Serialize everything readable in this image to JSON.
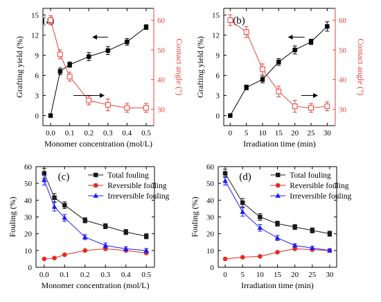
{
  "chart_data": [
    {
      "panel": "(a)",
      "type": "line",
      "xlabel": "Monomer concentration (mol/L)",
      "ylabel": "Grafting yield (%)",
      "y2label": "Contact angle (°)",
      "xlim": [
        -0.04,
        0.54
      ],
      "ylim": [
        -1.5,
        16
      ],
      "y2lim": [
        24.5,
        64
      ],
      "xticks": [
        "0.0",
        "0.1",
        "0.2",
        "0.3",
        "0.4",
        "0.5"
      ],
      "xtick_values": [
        0,
        0.1,
        0.2,
        0.3,
        0.4,
        0.5
      ],
      "yticks": [
        "0",
        "3",
        "6",
        "9",
        "12",
        "15"
      ],
      "ytick_values": [
        0,
        3,
        6,
        9,
        12,
        15
      ],
      "y2ticks": [
        "30",
        "40",
        "50",
        "60"
      ],
      "y2tick_values": [
        30,
        40,
        50,
        60
      ],
      "series": [
        {
          "axis": "left",
          "color": "#000000",
          "marker": "square",
          "x": [
            0,
            0.05,
            0.1,
            0.2,
            0.3,
            0.4,
            0.5
          ],
          "values": [
            0,
            6.6,
            7.6,
            8.8,
            9.7,
            11.0,
            13.2
          ],
          "errors": [
            0,
            0.5,
            0.4,
            0.6,
            0.6,
            0.5,
            0.35
          ]
        },
        {
          "axis": "right",
          "color": "#e8403a",
          "marker": "open-square",
          "x": [
            0,
            0.05,
            0.1,
            0.2,
            0.3,
            0.4,
            0.5
          ],
          "values": [
            60,
            48.5,
            41,
            33,
            31.5,
            30.5,
            30.5
          ],
          "errors": [
            1.5,
            1.5,
            1.5,
            1.5,
            2,
            1.5,
            1.5
          ]
        }
      ],
      "arrows": [
        {
          "direction": "left",
          "x": [
            0.3,
            0.22
          ],
          "y": 11.7
        },
        {
          "direction": "right",
          "x": [
            0.12,
            0.28
          ],
          "y": 3.0
        }
      ]
    },
    {
      "panel": "(b)",
      "type": "line",
      "xlabel": "Irradiation time (min)",
      "ylabel": "Grafting yield (%)",
      "y2label": "Contact angle (°)",
      "xlim": [
        -2,
        32.5
      ],
      "ylim": [
        -1.5,
        16
      ],
      "y2lim": [
        24.5,
        64
      ],
      "xticks": [
        "0",
        "5",
        "10",
        "15",
        "20",
        "25",
        "30"
      ],
      "xtick_values": [
        0,
        5,
        10,
        15,
        20,
        25,
        30
      ],
      "yticks": [
        "0",
        "3",
        "6",
        "9",
        "12",
        "15"
      ],
      "ytick_values": [
        0,
        3,
        6,
        9,
        12,
        15
      ],
      "y2ticks": [
        "30",
        "40",
        "50",
        "60"
      ],
      "y2tick_values": [
        30,
        40,
        50,
        60
      ],
      "series": [
        {
          "axis": "left",
          "color": "#000000",
          "marker": "square",
          "x": [
            0,
            5,
            10,
            15,
            20,
            25,
            30
          ],
          "values": [
            0,
            4.2,
            5.4,
            8.0,
            9.8,
            11.0,
            13.3
          ],
          "errors": [
            0,
            0.35,
            0.5,
            0.5,
            0.6,
            0.4,
            0.7
          ]
        },
        {
          "axis": "right",
          "color": "#e8403a",
          "marker": "open-square",
          "x": [
            0,
            5,
            10,
            15,
            20,
            25,
            30
          ],
          "values": [
            60,
            56,
            43.5,
            36,
            31,
            30.5,
            31
          ],
          "errors": [
            1.8,
            1.8,
            1.8,
            1.8,
            2,
            1.5,
            1.5
          ]
        }
      ],
      "arrows": [
        {
          "direction": "left",
          "x": [
            23,
            18
          ],
          "y": 11.7
        },
        {
          "direction": "right",
          "x": [
            22,
            27
          ],
          "y": 3.0
        }
      ]
    },
    {
      "panel": "(c)",
      "type": "line",
      "xlabel": "Monomer concentration (mol/L)",
      "ylabel": "Fouling (%)",
      "xlim": [
        -0.04,
        0.54
      ],
      "ylim": [
        0,
        60
      ],
      "xticks": [
        "0.0",
        "0.1",
        "0.2",
        "0.3",
        "0.4",
        "0.5"
      ],
      "xtick_values": [
        0,
        0.1,
        0.2,
        0.3,
        0.4,
        0.5
      ],
      "yticks": [
        "0",
        "10",
        "20",
        "30",
        "40",
        "50",
        "60"
      ],
      "ytick_values": [
        0,
        10,
        20,
        30,
        40,
        50,
        60
      ],
      "legend": "top-right",
      "series": [
        {
          "name": "Total fouling",
          "color": "#1a1a1a",
          "marker": "square",
          "x": [
            0,
            0.05,
            0.1,
            0.2,
            0.3,
            0.4,
            0.5
          ],
          "values": [
            56,
            41.5,
            37,
            28,
            24.5,
            21,
            18.5
          ],
          "errors": [
            3,
            2.5,
            2,
            1.5,
            1.5,
            1.5,
            1.5
          ]
        },
        {
          "name": "Reversible fouling",
          "color": "#e8281e",
          "marker": "circle",
          "x": [
            0,
            0.05,
            0.1,
            0.2,
            0.3,
            0.4,
            0.5
          ],
          "values": [
            5,
            5.5,
            7.5,
            10,
            11,
            10,
            8.5
          ],
          "errors": [
            0,
            0,
            0,
            0,
            0,
            0,
            0
          ]
        },
        {
          "name": "Irreversible fouling",
          "color": "#1a1aff",
          "marker": "triangle",
          "x": [
            0,
            0.05,
            0.1,
            0.2,
            0.3,
            0.4,
            0.5
          ],
          "values": [
            52,
            36,
            29.5,
            18,
            13,
            11,
            10
          ],
          "errors": [
            3,
            2.5,
            2,
            1.5,
            1.5,
            1.2,
            1.2
          ]
        }
      ]
    },
    {
      "panel": "(d)",
      "type": "line",
      "xlabel": "Irradiation time (min)",
      "ylabel": "Fouling (%)",
      "xlim": [
        -2,
        32
      ],
      "ylim": [
        0,
        60
      ],
      "xticks": [
        "0",
        "5",
        "10",
        "15",
        "20",
        "25",
        "30"
      ],
      "xtick_values": [
        0,
        5,
        10,
        15,
        20,
        25,
        30
      ],
      "yticks": [
        "0",
        "10",
        "20",
        "30",
        "40",
        "50",
        "60"
      ],
      "ytick_values": [
        0,
        10,
        20,
        30,
        40,
        50,
        60
      ],
      "legend": "top-right",
      "series": [
        {
          "name": "Total fouling",
          "color": "#1a1a1a",
          "marker": "square",
          "x": [
            0,
            5,
            10,
            15,
            20,
            25,
            30
          ],
          "values": [
            56,
            38.5,
            30,
            26,
            24,
            22,
            20
          ],
          "errors": [
            2.5,
            2.5,
            2,
            1.5,
            1.5,
            1.5,
            1.5
          ]
        },
        {
          "name": "Reversible fouling",
          "color": "#e8281e",
          "marker": "circle",
          "x": [
            0,
            5,
            10,
            15,
            20,
            25,
            30
          ],
          "values": [
            5,
            6,
            6.5,
            9,
            11,
            10.5,
            10
          ],
          "errors": [
            0,
            0,
            0,
            0,
            0,
            0,
            0
          ]
        },
        {
          "name": "Irreversible fouling",
          "color": "#1a1aff",
          "marker": "triangle",
          "x": [
            0,
            5,
            10,
            15,
            20,
            25,
            30
          ],
          "values": [
            51.5,
            33,
            23.5,
            17.5,
            13,
            11.5,
            10
          ],
          "errors": [
            2.5,
            2.5,
            2,
            1.5,
            1,
            1,
            1
          ]
        }
      ]
    }
  ]
}
